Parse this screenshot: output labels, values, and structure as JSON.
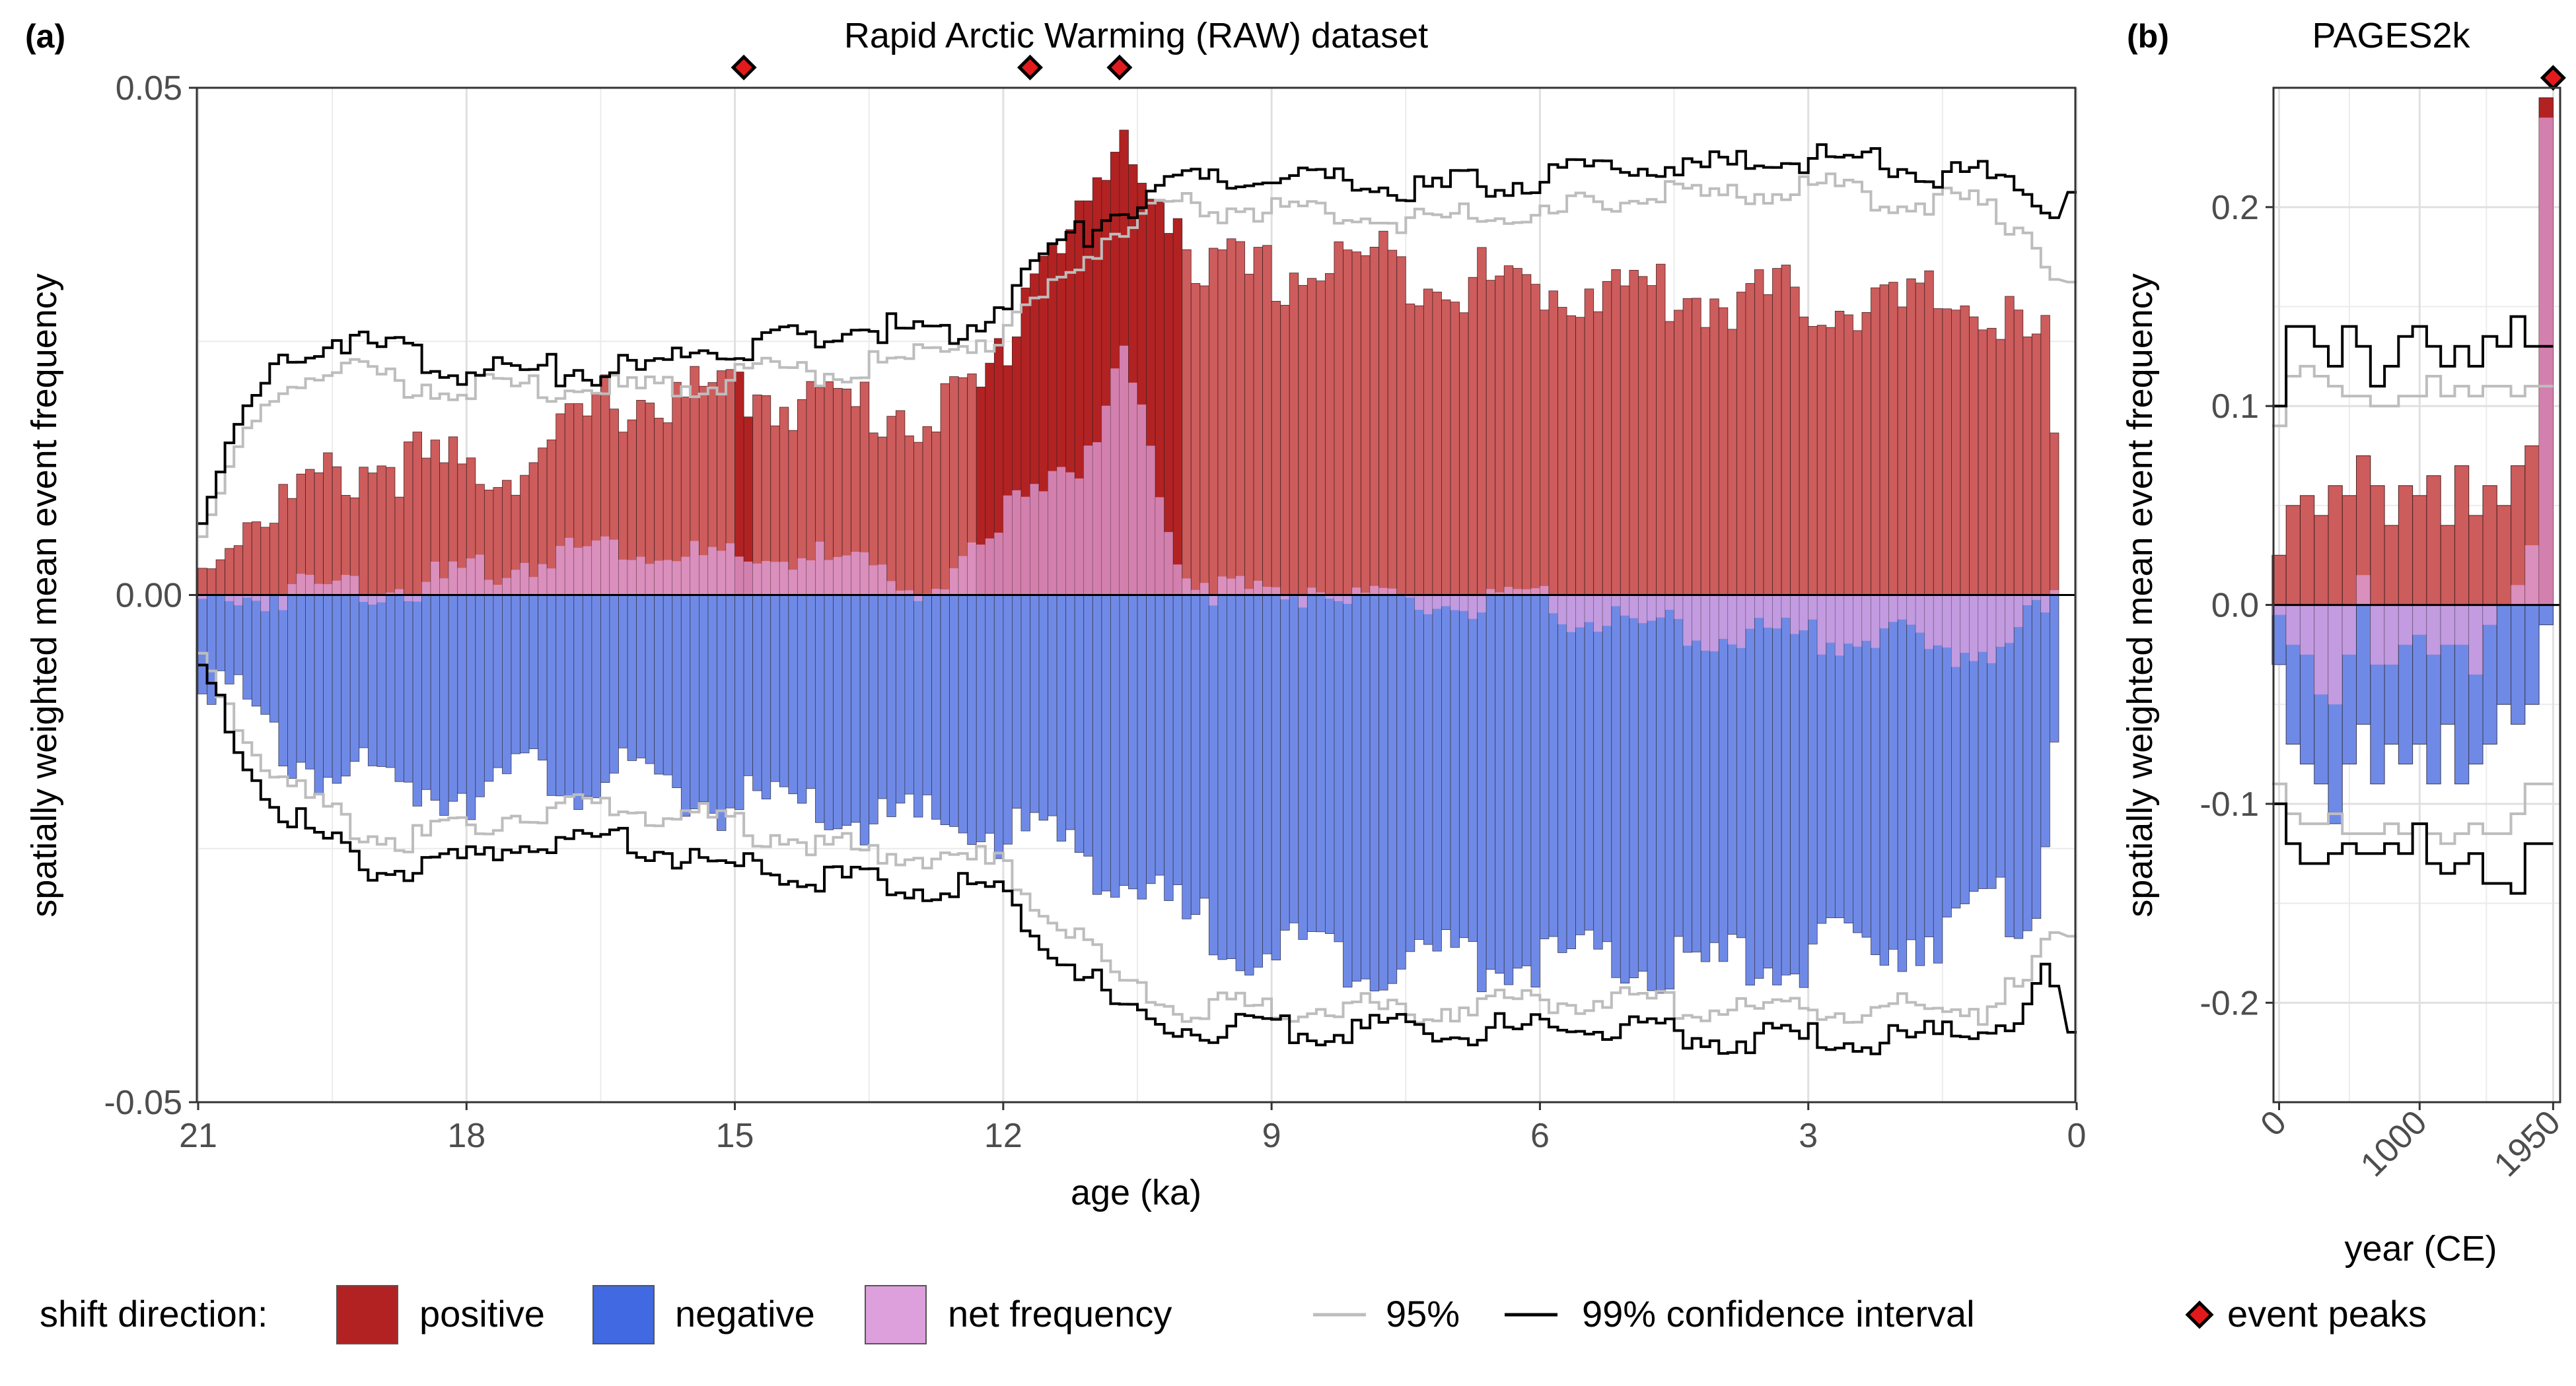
{
  "panels": {
    "a": {
      "tag": "(a)",
      "title": "Rapid Arctic Warming (RAW) dataset"
    },
    "b": {
      "tag": "(b)",
      "title": "PAGES2k"
    }
  },
  "legend": {
    "shift_title": "shift direction:",
    "positive": "positive",
    "negative": "negative",
    "net": "net frequency",
    "ci95": "95%",
    "ci99": "99% confidence interval",
    "peaks": "event peaks"
  },
  "colors": {
    "positive": "#b22222",
    "positive_faded": "#cd5c5c",
    "negative": "#4169e1",
    "negative_faded": "#6f8ae6",
    "net": "#dda0dd",
    "ci95": "#bdbdbd",
    "ci99": "#000000",
    "peak": "#e31a1c"
  },
  "chart_data": [
    {
      "type": "bar",
      "panel": "a",
      "title": "Rapid Arctic Warming (RAW) dataset",
      "xlabel": "age (ka)",
      "ylabel": "spatially weighted mean event frequency",
      "x_ticks": [
        21,
        18,
        15,
        12,
        9,
        6,
        3,
        0
      ],
      "x_tick_labels": [
        "21",
        "18",
        "15",
        "12",
        "9",
        "6",
        "3",
        "0"
      ],
      "y_ticks": [
        -0.05,
        0.0,
        0.05
      ],
      "y_tick_labels": [
        "-0.05",
        "0.00",
        "0.05"
      ],
      "xlim": [
        21,
        0
      ],
      "ylim": [
        -0.05,
        0.05
      ],
      "grid": true,
      "x_reversed": true,
      "bin_width_ka": 0.1,
      "positive_anchors": [
        [
          21.0,
          0.003
        ],
        [
          20.6,
          0.009
        ],
        [
          20.0,
          0.011
        ],
        [
          19.0,
          0.015
        ],
        [
          18.0,
          0.014
        ],
        [
          17.2,
          0.015
        ],
        [
          16.4,
          0.021
        ],
        [
          15.5,
          0.021
        ],
        [
          15.0,
          0.022
        ],
        [
          14.2,
          0.021
        ],
        [
          13.4,
          0.02
        ],
        [
          12.7,
          0.02
        ],
        [
          12.2,
          0.022
        ],
        [
          12.0,
          0.026
        ],
        [
          11.8,
          0.031
        ],
        [
          11.6,
          0.036
        ],
        [
          11.3,
          0.038
        ],
        [
          11.0,
          0.04
        ],
        [
          10.7,
          0.045
        ],
        [
          10.5,
          0.043
        ],
        [
          10.2,
          0.041
        ],
        [
          10.05,
          0.04
        ],
        [
          9.9,
          0.034
        ],
        [
          9.0,
          0.033
        ],
        [
          8.0,
          0.035
        ],
        [
          7.0,
          0.033
        ],
        [
          6.0,
          0.032
        ],
        [
          5.0,
          0.032
        ],
        [
          4.0,
          0.031
        ],
        [
          3.0,
          0.031
        ],
        [
          2.0,
          0.03
        ],
        [
          1.2,
          0.031
        ],
        [
          0.6,
          0.027
        ],
        [
          0.3,
          0.026
        ],
        [
          0.2,
          0.005
        ]
      ],
      "negative_anchors": [
        [
          21.0,
          -0.004
        ],
        [
          20.5,
          -0.01
        ],
        [
          20.0,
          -0.014
        ],
        [
          19.0,
          -0.017
        ],
        [
          18.0,
          -0.017
        ],
        [
          17.0,
          -0.016
        ],
        [
          16.0,
          -0.017
        ],
        [
          15.0,
          -0.019
        ],
        [
          14.0,
          -0.02
        ],
        [
          13.0,
          -0.021
        ],
        [
          12.4,
          -0.021
        ],
        [
          12.0,
          -0.022
        ],
        [
          11.5,
          -0.022
        ],
        [
          11.0,
          -0.024
        ],
        [
          10.3,
          -0.029
        ],
        [
          9.5,
          -0.032
        ],
        [
          9.0,
          -0.033
        ],
        [
          8.0,
          -0.034
        ],
        [
          7.0,
          -0.034
        ],
        [
          6.0,
          -0.034
        ],
        [
          5.0,
          -0.035
        ],
        [
          4.0,
          -0.035
        ],
        [
          3.0,
          -0.034
        ],
        [
          2.0,
          -0.032
        ],
        [
          1.0,
          -0.03
        ],
        [
          0.4,
          -0.028
        ],
        [
          0.2,
          -0.006
        ]
      ],
      "net_anchors": [
        [
          21.0,
          0.0
        ],
        [
          20.4,
          0.001
        ],
        [
          19.5,
          0.002
        ],
        [
          18.5,
          0.002
        ],
        [
          17.5,
          0.004
        ],
        [
          16.5,
          0.006
        ],
        [
          15.5,
          0.005
        ],
        [
          15.0,
          0.004
        ],
        [
          14.2,
          0.005
        ],
        [
          13.4,
          0.003
        ],
        [
          12.7,
          0.002
        ],
        [
          12.1,
          0.006
        ],
        [
          11.9,
          0.01
        ],
        [
          11.6,
          0.013
        ],
        [
          11.2,
          0.014
        ],
        [
          11.0,
          0.015
        ],
        [
          10.9,
          0.017
        ],
        [
          10.7,
          0.025
        ],
        [
          10.5,
          0.02
        ],
        [
          10.3,
          0.013
        ],
        [
          10.0,
          0.004
        ],
        [
          9.7,
          0.002
        ],
        [
          9.0,
          0.001
        ],
        [
          8.5,
          0.002
        ],
        [
          8.0,
          0.0
        ],
        [
          6.0,
          0.0
        ],
        [
          5.0,
          -0.002
        ],
        [
          4.0,
          -0.003
        ],
        [
          3.0,
          -0.003
        ],
        [
          2.0,
          -0.003
        ],
        [
          1.5,
          -0.005
        ],
        [
          1.0,
          -0.004
        ],
        [
          0.2,
          0.0
        ]
      ],
      "ci95_upper_anchors": [
        [
          21.0,
          0.006
        ],
        [
          20.5,
          0.015
        ],
        [
          20.0,
          0.022
        ],
        [
          19.4,
          0.023
        ],
        [
          18.8,
          0.022
        ],
        [
          18.0,
          0.021
        ],
        [
          17.0,
          0.021
        ],
        [
          16.0,
          0.021
        ],
        [
          15.4,
          0.022
        ],
        [
          15.0,
          0.022
        ],
        [
          14.4,
          0.023
        ],
        [
          13.6,
          0.023
        ],
        [
          13.0,
          0.024
        ],
        [
          12.6,
          0.025
        ],
        [
          12.2,
          0.026
        ],
        [
          11.8,
          0.028
        ],
        [
          11.4,
          0.031
        ],
        [
          11.0,
          0.035
        ],
        [
          10.7,
          0.037
        ],
        [
          10.3,
          0.038
        ],
        [
          10.0,
          0.039
        ],
        [
          9.5,
          0.039
        ],
        [
          9.0,
          0.039
        ],
        [
          8.0,
          0.038
        ],
        [
          7.0,
          0.038
        ],
        [
          6.0,
          0.038
        ],
        [
          5.0,
          0.04
        ],
        [
          4.0,
          0.04
        ],
        [
          3.0,
          0.041
        ],
        [
          2.0,
          0.04
        ],
        [
          1.0,
          0.039
        ],
        [
          0.4,
          0.036
        ],
        [
          0.3,
          0.032
        ],
        [
          0.1,
          0.032
        ]
      ],
      "ci95_lower_anchors": [
        [
          21.0,
          -0.005
        ],
        [
          20.5,
          -0.012
        ],
        [
          20.0,
          -0.018
        ],
        [
          19.0,
          -0.023
        ],
        [
          18.4,
          -0.023
        ],
        [
          17.5,
          -0.021
        ],
        [
          16.5,
          -0.02
        ],
        [
          15.5,
          -0.021
        ],
        [
          15.0,
          -0.022
        ],
        [
          14.0,
          -0.024
        ],
        [
          13.0,
          -0.025
        ],
        [
          12.5,
          -0.025
        ],
        [
          12.0,
          -0.026
        ],
        [
          11.5,
          -0.031
        ],
        [
          11.0,
          -0.034
        ],
        [
          10.7,
          -0.037
        ],
        [
          10.0,
          -0.04
        ],
        [
          9.0,
          -0.04
        ],
        [
          8.0,
          -0.04
        ],
        [
          7.0,
          -0.04
        ],
        [
          6.0,
          -0.039
        ],
        [
          5.0,
          -0.039
        ],
        [
          4.0,
          -0.04
        ],
        [
          3.0,
          -0.04
        ],
        [
          2.0,
          -0.04
        ],
        [
          1.0,
          -0.04
        ],
        [
          0.5,
          -0.037
        ],
        [
          0.3,
          -0.033
        ],
        [
          0.1,
          -0.034
        ]
      ],
      "ci99_upper_anchors": [
        [
          21.0,
          0.008
        ],
        [
          20.5,
          0.018
        ],
        [
          20.0,
          0.025
        ],
        [
          19.4,
          0.026
        ],
        [
          18.8,
          0.025
        ],
        [
          18.0,
          0.023
        ],
        [
          17.0,
          0.023
        ],
        [
          16.0,
          0.023
        ],
        [
          15.4,
          0.025
        ],
        [
          15.0,
          0.025
        ],
        [
          14.4,
          0.026
        ],
        [
          13.6,
          0.027
        ],
        [
          13.0,
          0.027
        ],
        [
          12.6,
          0.027
        ],
        [
          12.2,
          0.028
        ],
        [
          11.8,
          0.032
        ],
        [
          11.4,
          0.035
        ],
        [
          11.0,
          0.037
        ],
        [
          10.7,
          0.039
        ],
        [
          10.3,
          0.04
        ],
        [
          10.0,
          0.041
        ],
        [
          9.5,
          0.042
        ],
        [
          9.0,
          0.042
        ],
        [
          8.0,
          0.041
        ],
        [
          7.0,
          0.041
        ],
        [
          6.0,
          0.042
        ],
        [
          5.0,
          0.043
        ],
        [
          4.0,
          0.043
        ],
        [
          3.0,
          0.044
        ],
        [
          2.0,
          0.043
        ],
        [
          1.0,
          0.042
        ],
        [
          0.4,
          0.04
        ],
        [
          0.3,
          0.037
        ],
        [
          0.1,
          0.042
        ]
      ],
      "ci99_lower_anchors": [
        [
          21.0,
          -0.006
        ],
        [
          20.5,
          -0.015
        ],
        [
          20.0,
          -0.021
        ],
        [
          19.0,
          -0.026
        ],
        [
          18.4,
          -0.026
        ],
        [
          17.5,
          -0.024
        ],
        [
          16.5,
          -0.023
        ],
        [
          15.5,
          -0.025
        ],
        [
          15.0,
          -0.026
        ],
        [
          14.0,
          -0.027
        ],
        [
          13.0,
          -0.028
        ],
        [
          12.5,
          -0.028
        ],
        [
          12.0,
          -0.029
        ],
        [
          11.5,
          -0.033
        ],
        [
          11.0,
          -0.037
        ],
        [
          10.7,
          -0.04
        ],
        [
          10.0,
          -0.042
        ],
        [
          9.0,
          -0.042
        ],
        [
          8.0,
          -0.042
        ],
        [
          7.0,
          -0.042
        ],
        [
          6.0,
          -0.042
        ],
        [
          5.0,
          -0.042
        ],
        [
          4.0,
          -0.043
        ],
        [
          3.0,
          -0.043
        ],
        [
          2.0,
          -0.043
        ],
        [
          1.0,
          -0.042
        ],
        [
          0.5,
          -0.04
        ],
        [
          0.3,
          -0.036
        ],
        [
          0.1,
          -0.043
        ]
      ],
      "event_peaks_ka": [
        14.9,
        11.7,
        10.7
      ],
      "event_peak_y": 0.052,
      "highlighted_bins_ka": [
        14.9,
        12.2,
        12.1,
        12.0,
        11.9,
        11.8,
        11.7,
        11.6,
        11.5,
        11.4,
        11.3,
        11.2,
        11.1,
        11.0,
        10.9,
        10.8,
        10.7,
        10.6,
        10.5,
        10.4,
        10.3,
        10.2,
        10.1
      ]
    },
    {
      "type": "bar",
      "panel": "b",
      "title": "PAGES2k",
      "xlabel": "year (CE)",
      "ylabel": "spatially weighted mean event frequency",
      "x_ticks": [
        0,
        1000,
        1950
      ],
      "x_tick_labels": [
        "0",
        "1000",
        "1950"
      ],
      "y_ticks": [
        -0.2,
        -0.1,
        0.0,
        0.1,
        0.2
      ],
      "y_tick_labels": [
        "-0.2",
        "-0.1",
        "0.0",
        "0.1",
        "0.2"
      ],
      "xlim": [
        -40,
        2000
      ],
      "ylim": [
        -0.25,
        0.26
      ],
      "grid": true,
      "bin_width_years": 100,
      "bin_centers_ce": [
        0,
        100,
        200,
        300,
        400,
        500,
        600,
        700,
        800,
        900,
        1000,
        1100,
        1200,
        1300,
        1400,
        1500,
        1600,
        1700,
        1800,
        1900
      ],
      "positive": [
        0.025,
        0.05,
        0.055,
        0.045,
        0.06,
        0.055,
        0.075,
        0.06,
        0.04,
        0.06,
        0.055,
        0.065,
        0.04,
        0.07,
        0.045,
        0.06,
        0.05,
        0.07,
        0.08,
        0.255
      ],
      "negative": [
        -0.03,
        -0.07,
        -0.08,
        -0.09,
        -0.11,
        -0.08,
        -0.06,
        -0.09,
        -0.07,
        -0.08,
        -0.07,
        -0.09,
        -0.06,
        -0.09,
        -0.08,
        -0.07,
        -0.05,
        -0.06,
        -0.05,
        -0.01
      ],
      "net": [
        -0.005,
        -0.02,
        -0.025,
        -0.045,
        -0.05,
        -0.025,
        0.015,
        -0.03,
        -0.03,
        -0.02,
        -0.015,
        -0.025,
        -0.02,
        -0.02,
        -0.035,
        -0.01,
        0.0,
        0.01,
        0.03,
        0.245
      ],
      "ci95_upper": [
        0.09,
        0.115,
        0.12,
        0.115,
        0.11,
        0.105,
        0.105,
        0.1,
        0.1,
        0.105,
        0.105,
        0.115,
        0.105,
        0.11,
        0.105,
        0.11,
        0.11,
        0.105,
        0.11,
        0.11
      ],
      "ci95_lower": [
        -0.09,
        -0.105,
        -0.11,
        -0.11,
        -0.105,
        -0.115,
        -0.115,
        -0.115,
        -0.11,
        -0.115,
        -0.11,
        -0.115,
        -0.12,
        -0.115,
        -0.11,
        -0.115,
        -0.115,
        -0.105,
        -0.09,
        -0.09
      ],
      "ci99_upper": [
        0.1,
        0.14,
        0.14,
        0.13,
        0.12,
        0.14,
        0.13,
        0.11,
        0.12,
        0.135,
        0.14,
        0.13,
        0.12,
        0.13,
        0.12,
        0.135,
        0.13,
        0.145,
        0.13,
        0.13
      ],
      "ci99_lower": [
        -0.1,
        -0.12,
        -0.13,
        -0.13,
        -0.125,
        -0.12,
        -0.125,
        -0.125,
        -0.12,
        -0.125,
        -0.11,
        -0.13,
        -0.135,
        -0.13,
        -0.125,
        -0.14,
        -0.14,
        -0.145,
        -0.12,
        -0.12
      ],
      "event_peaks_ce": [
        1950
      ],
      "event_peak_y": 0.265,
      "highlighted_bins_ce": [
        1900
      ]
    }
  ]
}
